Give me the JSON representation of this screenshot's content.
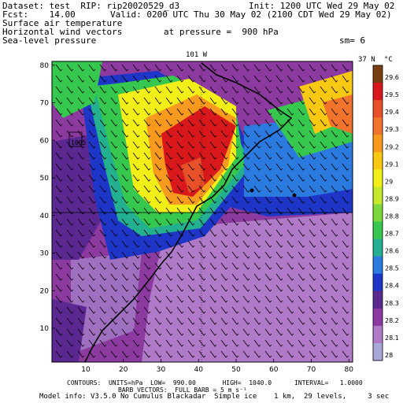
{
  "header": {
    "dataset": "Dataset: test  RIP: rip20020529_d3",
    "init": "Init: 1200 UTC Wed 29 May 02",
    "fcst": "Fcst:    14.00",
    "valid": "Valid: 0200 UTC Thu 30 May 02 (2100 CDT Wed 29 May 02)",
    "field1": "Surface air temperature",
    "field2": "Horizontal wind vectors",
    "pressure": "at pressure =  900 hPa",
    "field3": "Sea-level pressure",
    "sm": "sm= 6"
  },
  "map": {
    "top_label": "101 W",
    "right_label": "37 N",
    "station_label": "1005",
    "x_ticks": [
      "10",
      "20",
      "30",
      "40",
      "50",
      "60",
      "70",
      "80"
    ],
    "y_ticks": [
      "10",
      "20",
      "30",
      "40",
      "50",
      "60",
      "70",
      "80"
    ],
    "x_range": [
      1,
      81
    ],
    "y_range": [
      1,
      81
    ],
    "temperature_field": "surface air temperature (shaded)",
    "wind_barbs": "horizontal wind vectors"
  },
  "colorbar": {
    "unit": "°C",
    "labels": [
      "29.6",
      "29.5",
      "29.4",
      "29.3",
      "29.2",
      "29.1",
      "29",
      "28.9",
      "28.8",
      "28.7",
      "28.6",
      "28.5",
      "28.4",
      "28.3",
      "28.2",
      "28.1",
      "28"
    ],
    "colors": [
      "#7a3d12",
      "#d8181a",
      "#e8502a",
      "#f2742c",
      "#f89a1e",
      "#f8c812",
      "#f2ee18",
      "#c4e82c",
      "#7cd83c",
      "#36c84e",
      "#22b090",
      "#2a7ae0",
      "#1e36c8",
      "#5a2890",
      "#8c3aa0",
      "#b07ac8",
      "#a8a8d8"
    ]
  },
  "footer": {
    "line1": "CONTOURS:  UNITS=hPa  LOW=  990.00       HIGH=  1040.0      INTERVAL=   1.0000",
    "line2": "BARB VECTORS:  FULL BARB = 5 m s⁻¹",
    "line3": "Model info: V3.5.0 No Cumulus Blackadar  Simple ice    1 km,  29 levels,     3 sec"
  }
}
